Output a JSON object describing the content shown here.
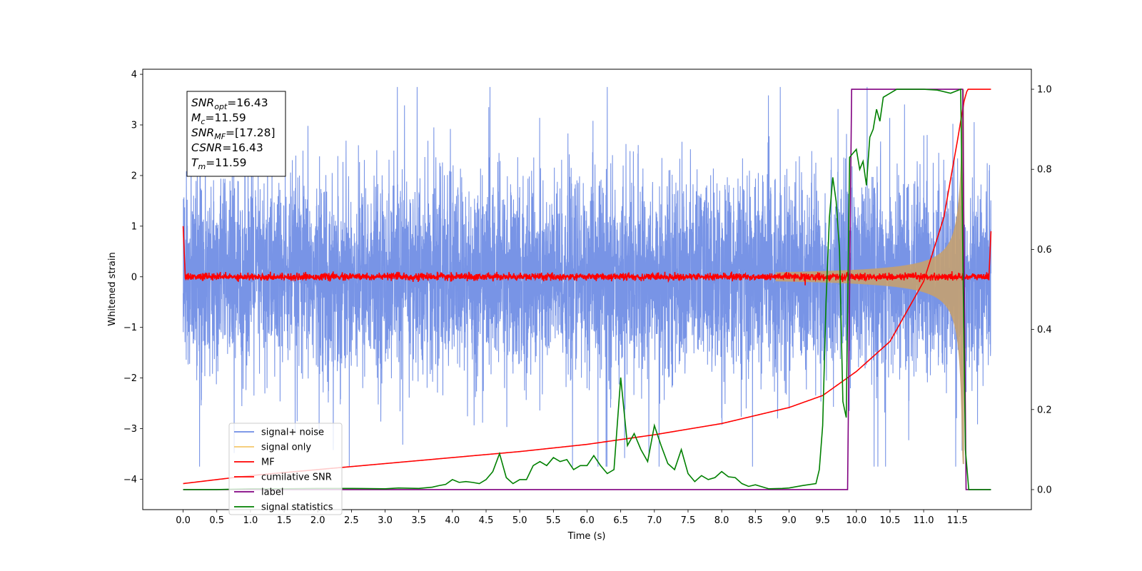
{
  "chart_data": {
    "type": "line",
    "title": "",
    "xlabel": "Time (s)",
    "ylabel": "Whitened strain",
    "xlim": [
      -0.6,
      12.6
    ],
    "ylim": [
      -4.6,
      4.1
    ],
    "y2lim": [
      -0.05,
      1.05
    ],
    "xticks": [
      0.0,
      0.5,
      1.0,
      1.5,
      2.0,
      2.5,
      3.0,
      3.5,
      4.0,
      4.5,
      5.0,
      5.5,
      6.0,
      6.5,
      7.0,
      7.5,
      8.0,
      8.5,
      9.0,
      9.5,
      10.0,
      10.5,
      11.0,
      11.5
    ],
    "xtick_labels": [
      "0.0",
      "0.5",
      "1.0",
      "1.5",
      "2.0",
      "2.5",
      "3.0",
      "3.5",
      "4.0",
      "4.5",
      "5.0",
      "5.5",
      "6.0",
      "6.5",
      "7.0",
      "7.5",
      "8.0",
      "8.5",
      "9.0",
      "9.5",
      "10.0",
      "10.5",
      "11.0",
      "11.5"
    ],
    "yticks": [
      4,
      3,
      2,
      1,
      0,
      -1,
      -2,
      -3,
      -4
    ],
    "ytick_labels": [
      "4",
      "3",
      "2",
      "1",
      "0",
      "−1",
      "−2",
      "−3",
      "−4"
    ],
    "y2ticks": [
      1.0,
      0.8,
      0.6,
      0.4,
      0.2,
      0.0
    ],
    "y2tick_labels": [
      "1.0",
      "0.8",
      "0.6",
      "0.4",
      "0.2",
      "0.0"
    ],
    "grid": false,
    "legend_position": "lower-left",
    "duration": 12.0,
    "series": [
      {
        "name": "signal+ noise",
        "axis": "left",
        "color": "#6d8be4",
        "kind": "noise",
        "sigma": 1.0,
        "x_range": [
          0.0,
          12.0
        ]
      },
      {
        "name": "signal only",
        "axis": "left",
        "color": "#f5c76c",
        "kind": "chirp",
        "x_range": [
          0.0,
          11.6
        ],
        "amplitude_peak": 3.7
      },
      {
        "name": "MF",
        "axis": "left",
        "color": "#ff0000",
        "kind": "matched-filter",
        "x_range": [
          0.0,
          12.0
        ],
        "baseline": 0.0,
        "start_value": 1.0,
        "end_value": 0.9
      },
      {
        "name": "cumilative SNR",
        "axis": "right",
        "color": "#ff0000",
        "x": [
          0.0,
          1.0,
          2.0,
          3.0,
          4.0,
          5.0,
          6.0,
          7.0,
          8.0,
          9.0,
          9.5,
          10.0,
          10.5,
          11.0,
          11.3,
          11.5,
          11.6,
          11.65,
          12.0
        ],
        "values": [
          0.015,
          0.035,
          0.05,
          0.065,
          0.08,
          0.095,
          0.113,
          0.137,
          0.165,
          0.205,
          0.235,
          0.295,
          0.37,
          0.52,
          0.68,
          0.87,
          0.97,
          1.0,
          1.0
        ]
      },
      {
        "name": "label",
        "axis": "right",
        "color": "#800080",
        "x": [
          0.0,
          9.87,
          9.93,
          11.58,
          11.63,
          12.0
        ],
        "values": [
          0.0,
          0.0,
          1.0,
          1.0,
          0.0,
          0.0
        ]
      },
      {
        "name": "signal statistics",
        "axis": "right",
        "color": "#008000",
        "x": [
          0.0,
          0.5,
          1.0,
          1.5,
          2.0,
          2.5,
          3.0,
          3.2,
          3.5,
          3.7,
          3.8,
          3.9,
          4.0,
          4.1,
          4.2,
          4.3,
          4.4,
          4.5,
          4.6,
          4.7,
          4.8,
          4.9,
          5.0,
          5.1,
          5.2,
          5.3,
          5.4,
          5.5,
          5.6,
          5.7,
          5.8,
          5.9,
          6.0,
          6.1,
          6.2,
          6.3,
          6.4,
          6.5,
          6.6,
          6.7,
          6.8,
          6.9,
          7.0,
          7.1,
          7.2,
          7.3,
          7.4,
          7.5,
          7.6,
          7.7,
          7.8,
          7.9,
          8.0,
          8.1,
          8.2,
          8.3,
          8.4,
          8.5,
          8.7,
          8.9,
          9.0,
          9.2,
          9.4,
          9.45,
          9.5,
          9.55,
          9.6,
          9.65,
          9.7,
          9.75,
          9.8,
          9.85,
          9.9,
          9.95,
          10.0,
          10.05,
          10.1,
          10.15,
          10.2,
          10.25,
          10.3,
          10.35,
          10.4,
          10.5,
          10.6,
          10.7,
          10.8,
          11.0,
          11.2,
          11.4,
          11.55,
          11.62,
          11.67,
          11.7,
          12.0
        ],
        "values": [
          0.0,
          0.0,
          0.002,
          0.002,
          0.003,
          0.003,
          0.002,
          0.004,
          0.003,
          0.006,
          0.01,
          0.013,
          0.025,
          0.018,
          0.02,
          0.018,
          0.015,
          0.025,
          0.045,
          0.09,
          0.03,
          0.015,
          0.025,
          0.025,
          0.06,
          0.07,
          0.06,
          0.08,
          0.07,
          0.075,
          0.05,
          0.06,
          0.06,
          0.085,
          0.06,
          0.04,
          0.05,
          0.28,
          0.11,
          0.14,
          0.1,
          0.07,
          0.16,
          0.11,
          0.065,
          0.05,
          0.1,
          0.04,
          0.02,
          0.035,
          0.025,
          0.03,
          0.045,
          0.032,
          0.03,
          0.015,
          0.008,
          0.012,
          0.002,
          0.003,
          0.004,
          0.01,
          0.015,
          0.05,
          0.16,
          0.47,
          0.68,
          0.78,
          0.72,
          0.6,
          0.22,
          0.18,
          0.83,
          0.84,
          0.85,
          0.8,
          0.82,
          0.76,
          0.88,
          0.9,
          0.95,
          0.92,
          0.98,
          0.99,
          1.0,
          1.0,
          1.0,
          1.0,
          0.998,
          0.99,
          1.0,
          0.1,
          0.0,
          0.0,
          0.0
        ]
      }
    ],
    "annotation_lines": [
      {
        "label": "SNR",
        "sub": "opt",
        "value": "=16.43"
      },
      {
        "label": "M",
        "sub": "c",
        "value": "=11.59"
      },
      {
        "label": "SNR",
        "sub": "MF",
        "value": "=[17.28]"
      },
      {
        "label": "CSNR",
        "sub": "",
        "value": "=16.43"
      },
      {
        "label": "T",
        "sub": "m",
        "value": "=11.59"
      }
    ]
  }
}
